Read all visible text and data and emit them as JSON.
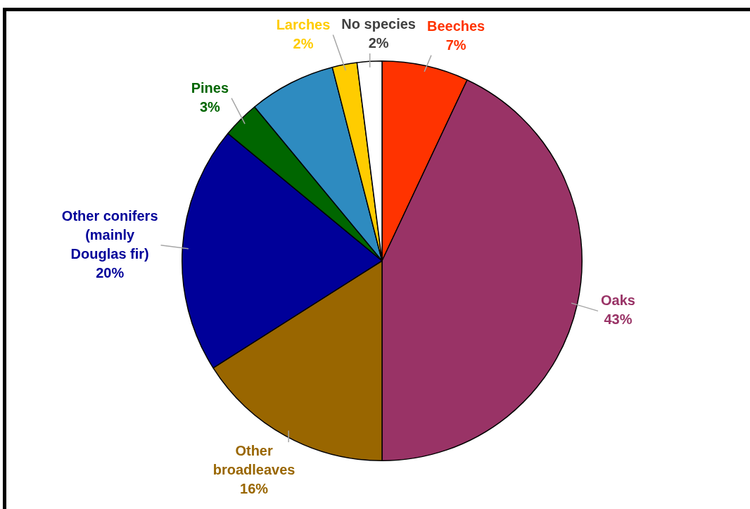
{
  "chart_data": {
    "type": "pie",
    "categories": [
      "Beeches",
      "Oaks",
      "Other broadleaves",
      "Other conifers (mainly Douglas fir)",
      "Pines",
      null,
      "Larches",
      "No species"
    ],
    "values": [
      7,
      43,
      16,
      20,
      3,
      7,
      2,
      2
    ],
    "colors": [
      "#ff3300",
      "#993366",
      "#996600",
      "#000099",
      "#006600",
      "#2e8bc0",
      "#ffcc00",
      "#ffffff"
    ],
    "value_labels": [
      "7%",
      "43%",
      "16%",
      "20%",
      "3%",
      null,
      "2%",
      "2%"
    ],
    "legend": false
  }
}
